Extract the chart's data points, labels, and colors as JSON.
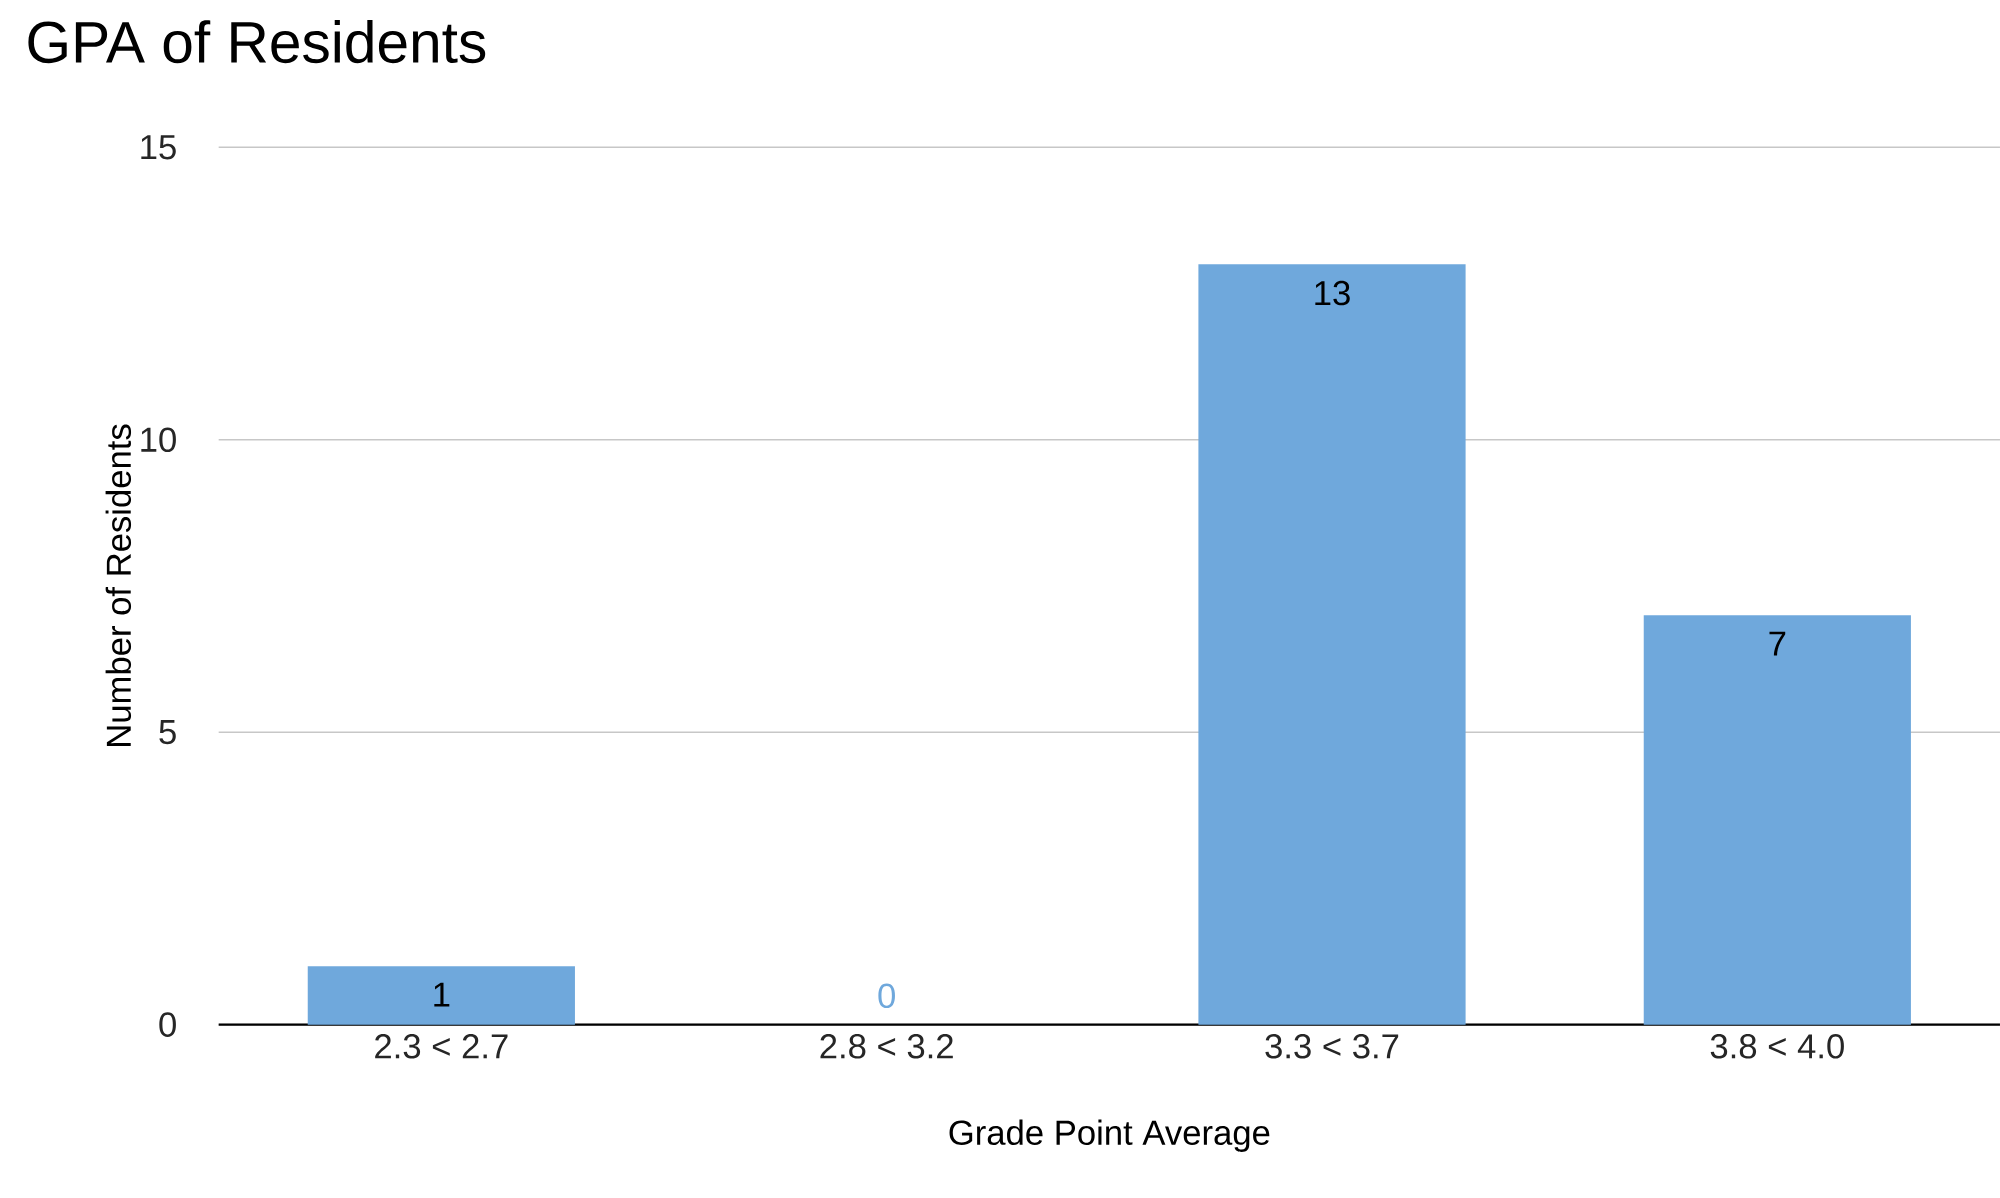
{
  "chart_data": {
    "type": "bar",
    "title": "GPA of Residents",
    "xlabel": "Grade Point Average",
    "ylabel": "Number of Residents",
    "categories": [
      "2.3 < 2.7",
      "2.8 < 3.2",
      "3.3 < 3.7",
      "3.8 < 4.0"
    ],
    "values": [
      1,
      0,
      13,
      7
    ],
    "color": "#6fa8dc",
    "ylim": [
      0,
      15
    ],
    "yticks": [
      0,
      5,
      10,
      15
    ],
    "grid": "y",
    "data_labels": true
  }
}
